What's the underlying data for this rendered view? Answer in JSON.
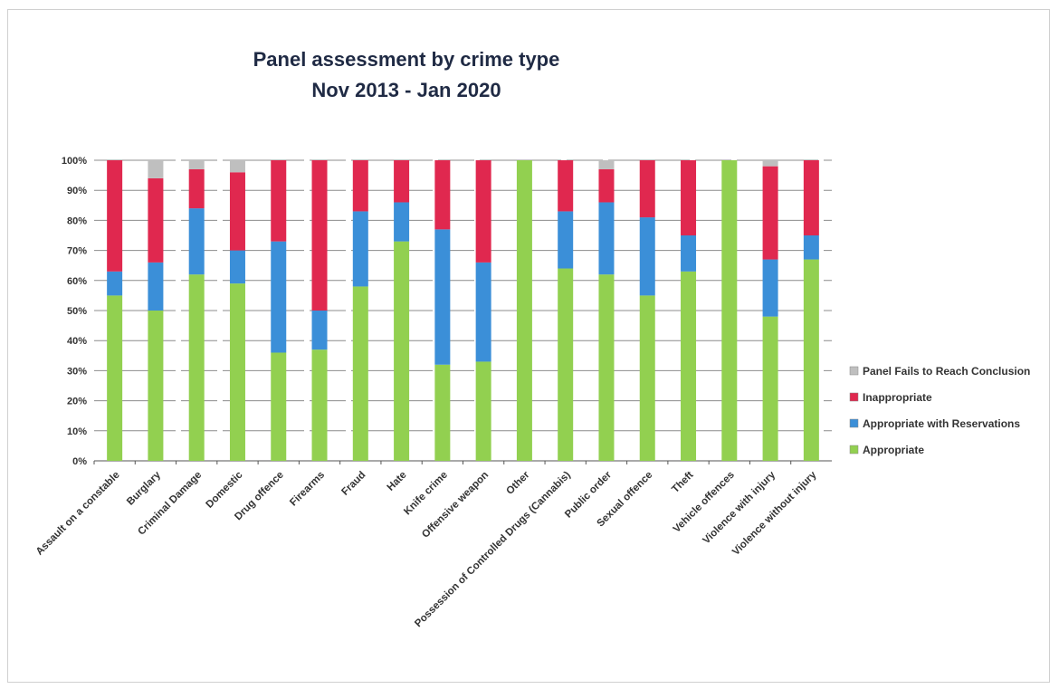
{
  "chart_data": {
    "type": "bar",
    "stacked": true,
    "title": "Panel assessment by crime type",
    "subtitle": "Nov 2013 - Jan 2020",
    "ylim": [
      0,
      100
    ],
    "y_ticks": [
      "0%",
      "10%",
      "20%",
      "30%",
      "40%",
      "50%",
      "60%",
      "70%",
      "80%",
      "90%",
      "100%"
    ],
    "grid": true,
    "legend_position": "right",
    "categories": [
      "Assault on a constable",
      "Burglary",
      "Criminal Damage",
      "Domestic",
      "Drug offence",
      "Firearms",
      "Fraud",
      "Hate",
      "Knife crime",
      "Offensive weapon",
      "Other",
      "Possession of Controlled Drugs (Cannabis)",
      "Public order",
      "Sexual offence",
      "Theft",
      "Vehicle offences",
      "Violence with injury",
      "Violence without injury"
    ],
    "series": [
      {
        "name": "Appropriate",
        "color": "#92d050",
        "values": [
          55,
          50,
          62,
          59,
          36,
          37,
          58,
          73,
          32,
          33,
          100,
          64,
          62,
          55,
          63,
          100,
          48,
          67
        ]
      },
      {
        "name": "Appropriate with Reservations",
        "color": "#3b8fd8",
        "values": [
          8,
          16,
          22,
          11,
          37,
          13,
          25,
          13,
          45,
          33,
          0,
          19,
          24,
          26,
          12,
          0,
          19,
          8
        ]
      },
      {
        "name": "Inappropriate",
        "color": "#e0284f",
        "values": [
          37,
          28,
          13,
          26,
          27,
          50,
          17,
          14,
          23,
          34,
          0,
          17,
          11,
          19,
          25,
          0,
          31,
          25
        ]
      },
      {
        "name": "Panel Fails to Reach Conclusion",
        "color": "#bfbfbf",
        "values": [
          0,
          6,
          3,
          4,
          0,
          0,
          0,
          0,
          0,
          0,
          0,
          0,
          3,
          0,
          0,
          0,
          2,
          0
        ]
      }
    ],
    "legend": [
      {
        "label": "Panel Fails to Reach Conclusion",
        "color": "#bfbfbf"
      },
      {
        "label": "Inappropriate",
        "color": "#e0284f"
      },
      {
        "label": "Appropriate with Reservations",
        "color": "#3b8fd8"
      },
      {
        "label": "Appropriate",
        "color": "#92d050"
      }
    ]
  }
}
